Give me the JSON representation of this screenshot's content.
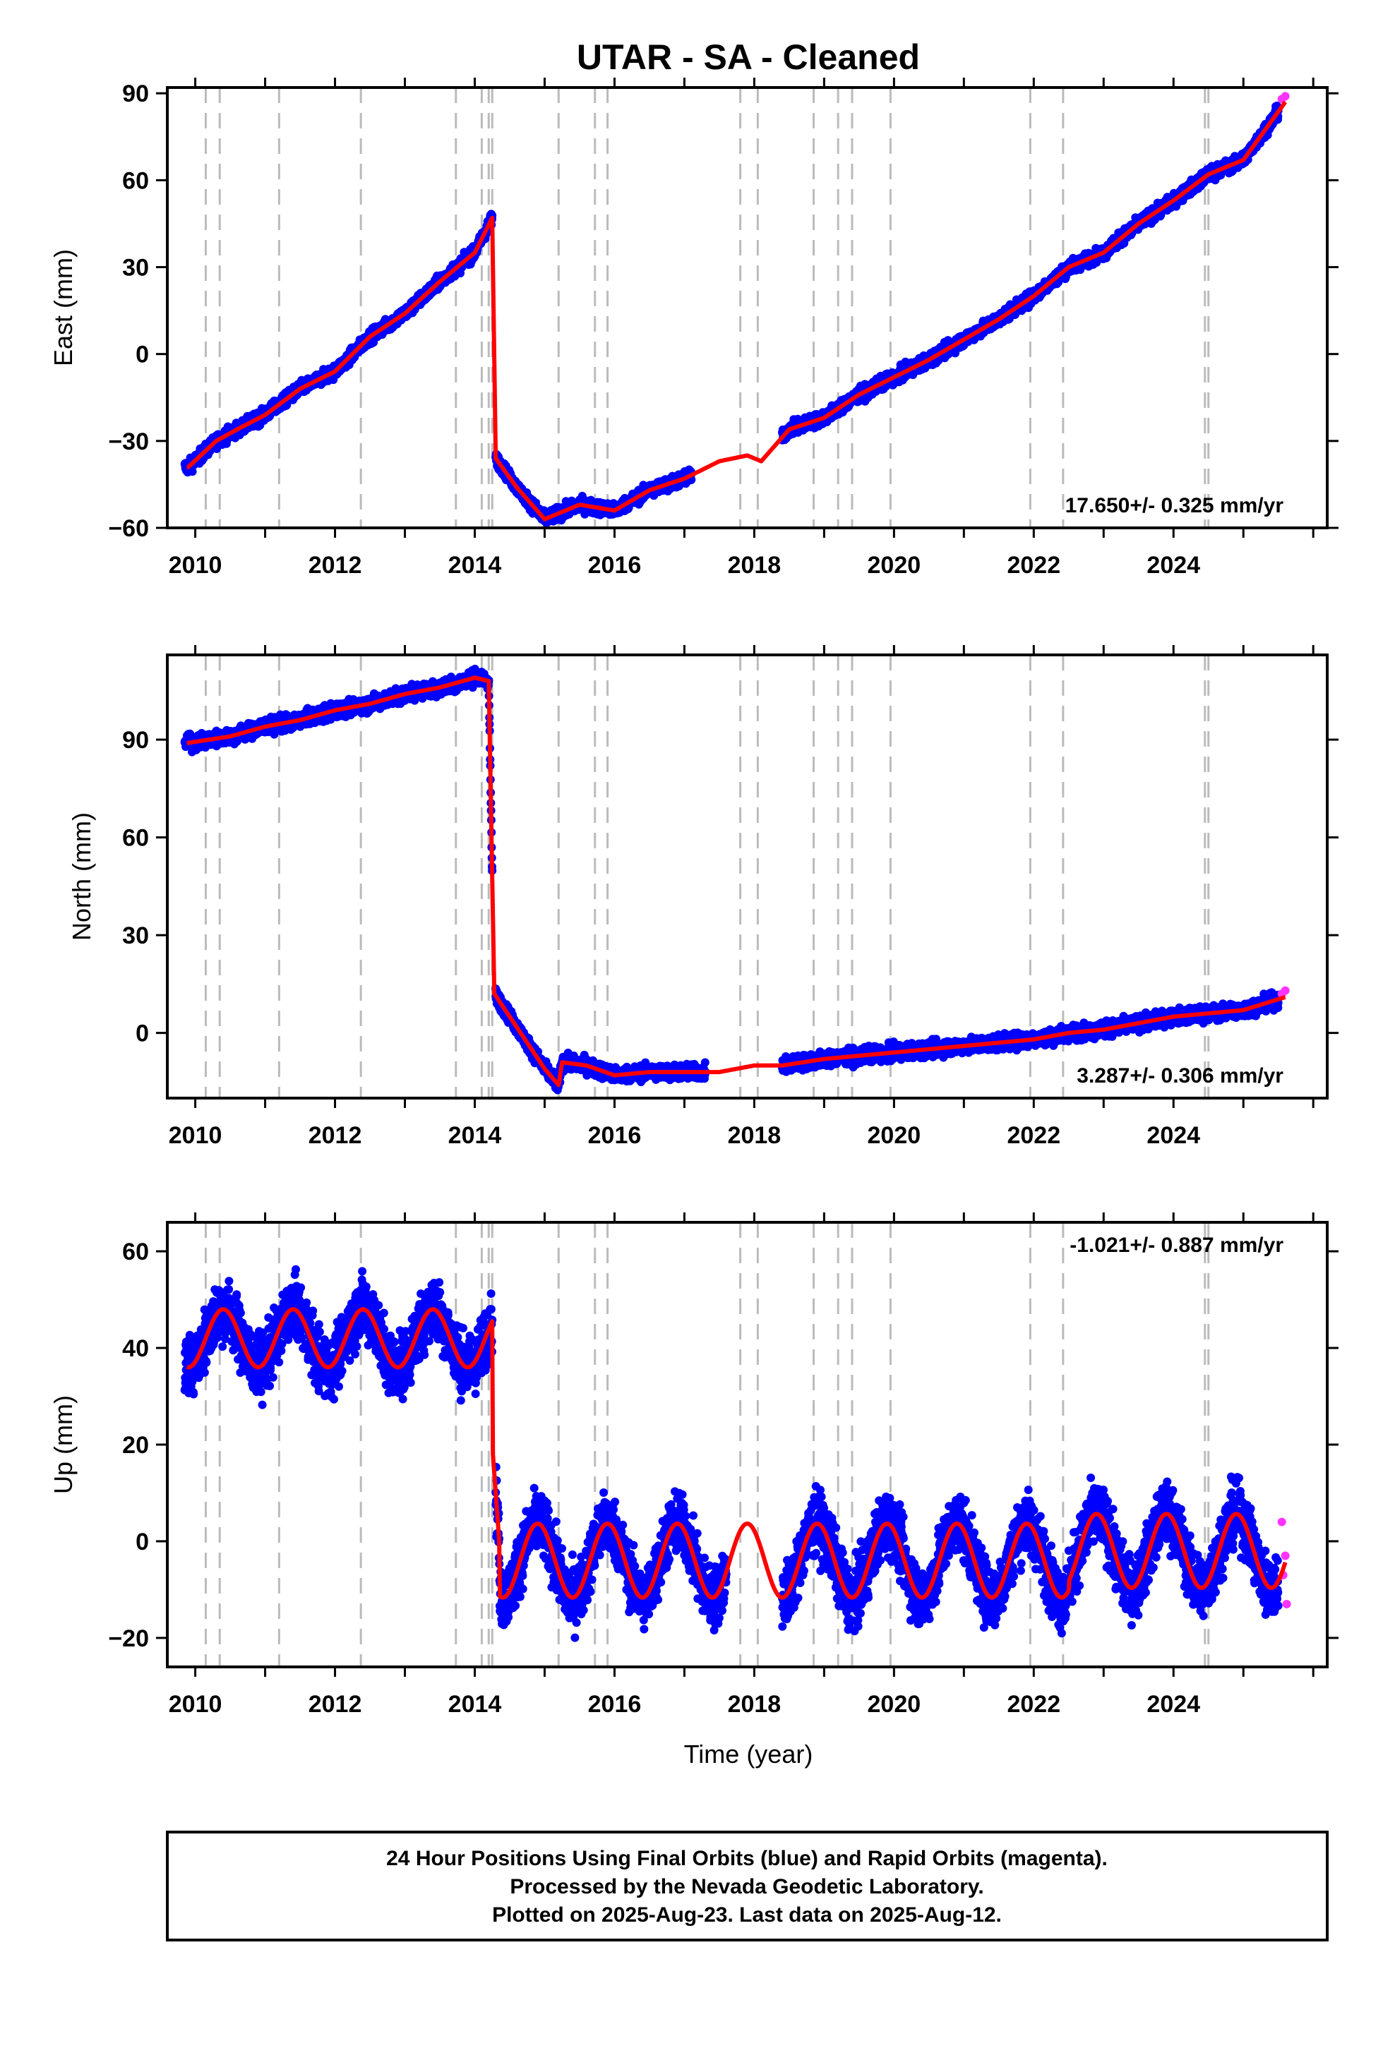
{
  "title": "UTAR  - SA - Cleaned",
  "xlabel": "Time (year)",
  "footer": [
    "24 Hour Positions Using Final Orbits (blue) and Rapid Orbits (magenta).",
    "Processed by the Nevada Geodetic Laboratory.",
    "Plotted on 2025-Aug-23. Last data on 2025-Aug-12."
  ],
  "colors": {
    "final": "#0000ff",
    "rapid": "#ff33ff",
    "model": "#ff0000",
    "event": "#bbbbbb",
    "frame": "#000000"
  },
  "chart_data": [
    {
      "type": "scatter",
      "component": "East",
      "ylabel": "East (mm)",
      "rate": "17.650+/- 0.325 mm/yr",
      "xlim": [
        2009.6,
        2026.2
      ],
      "ylim": [
        -60,
        92
      ],
      "yticks": [
        -60,
        -30,
        0,
        30,
        60,
        90
      ],
      "xticks": [
        2010,
        2012,
        2014,
        2016,
        2018,
        2020,
        2022,
        2024
      ],
      "grid": false,
      "model_curve": {
        "x": [
          2009.9,
          2010.3,
          2010.6,
          2011.0,
          2011.5,
          2012.0,
          2012.5,
          2013.0,
          2013.5,
          2014.0,
          2014.25,
          2014.3,
          2014.6,
          2015.0,
          2015.5,
          2016.0,
          2016.5,
          2017.0,
          2017.5,
          2017.9,
          2018.1,
          2018.5,
          2019.0,
          2019.5,
          2020.0,
          2020.5,
          2021.0,
          2021.5,
          2022.0,
          2022.5,
          2023.0,
          2023.5,
          2024.0,
          2024.5,
          2025.0,
          2025.6
        ],
        "y": [
          -39,
          -30,
          -26,
          -21,
          -12,
          -6,
          6,
          14,
          25,
          35,
          47,
          -36,
          -46,
          -57,
          -52,
          -54,
          -47,
          -43,
          -37,
          -35,
          -37,
          -26,
          -22,
          -14,
          -8,
          -2,
          5,
          12,
          20,
          30,
          35,
          45,
          53,
          62,
          67,
          87
        ]
      },
      "series": [
        {
          "name": "Final Orbits (blue)",
          "segments": [
            [
              2009.85,
              2014.25
            ],
            [
              2014.3,
              2017.1
            ],
            [
              2018.4,
              2025.5
            ]
          ]
        },
        {
          "name": "Rapid Orbits (magenta)",
          "x": [
            2025.55,
            2025.6
          ],
          "y": [
            88,
            89
          ]
        }
      ],
      "events": [
        2010.15,
        2010.35,
        2011.2,
        2012.37,
        2013.73,
        2014.1,
        2014.2,
        2014.25,
        2015.2,
        2015.72,
        2015.9,
        2017.8,
        2018.05,
        2018.85,
        2019.2,
        2019.4,
        2019.95,
        2021.95,
        2022.42,
        2024.45,
        2024.5
      ]
    },
    {
      "type": "scatter",
      "component": "North",
      "ylabel": "North (mm)",
      "rate": "3.287+/- 0.306 mm/yr",
      "xlim": [
        2009.6,
        2026.2
      ],
      "ylim": [
        -20,
        116
      ],
      "yticks": [
        0,
        30,
        60,
        90
      ],
      "xticks": [
        2010,
        2012,
        2014,
        2016,
        2018,
        2020,
        2022,
        2024
      ],
      "grid": false,
      "model_curve": {
        "x": [
          2009.9,
          2010.5,
          2011.0,
          2011.5,
          2012.0,
          2012.5,
          2013.0,
          2013.5,
          2014.0,
          2014.2,
          2014.28,
          2014.5,
          2015.0,
          2015.2,
          2015.25,
          2015.6,
          2016.0,
          2016.5,
          2017.0,
          2017.5,
          2018.0,
          2018.4,
          2019.0,
          2019.5,
          2020.0,
          2020.5,
          2021.0,
          2021.5,
          2022.0,
          2022.5,
          2023.0,
          2023.5,
          2024.0,
          2024.5,
          2025.0,
          2025.6
        ],
        "y": [
          89,
          91,
          94,
          96,
          99,
          101,
          104,
          106,
          109,
          108,
          12,
          5,
          -11,
          -16,
          -9,
          -10,
          -13,
          -12,
          -12,
          -12,
          -10,
          -10,
          -8,
          -7,
          -6,
          -5,
          -4,
          -3,
          -2,
          0,
          1,
          3,
          5,
          6,
          7,
          11
        ]
      },
      "series": [
        {
          "name": "Final Orbits (blue)",
          "segments": [
            [
              2009.85,
              2014.25
            ],
            [
              2014.3,
              2017.3
            ],
            [
              2018.4,
              2025.5
            ]
          ]
        },
        {
          "name": "Rapid Orbits (magenta)",
          "x": [
            2025.55,
            2025.6
          ],
          "y": [
            12,
            13
          ]
        }
      ],
      "events": [
        2010.15,
        2010.35,
        2011.2,
        2012.37,
        2013.73,
        2014.1,
        2014.2,
        2014.25,
        2015.2,
        2015.72,
        2015.9,
        2017.8,
        2018.05,
        2018.85,
        2019.2,
        2019.4,
        2019.95,
        2021.95,
        2022.42,
        2024.45,
        2024.5
      ]
    },
    {
      "type": "scatter",
      "component": "Up",
      "ylabel": "Up (mm)",
      "rate": "-1.021+/- 0.887 mm/yr",
      "xlim": [
        2009.6,
        2026.2
      ],
      "ylim": [
        -26,
        66
      ],
      "yticks": [
        -20,
        0,
        20,
        40,
        60
      ],
      "xticks": [
        2010,
        2012,
        2014,
        2016,
        2018,
        2020,
        2022,
        2024
      ],
      "grid": false,
      "model_curve": {
        "description_free": true,
        "seasonal_amplitude": 6,
        "pre_event_mean": 42,
        "post_event_mean": -4
      },
      "series": [
        {
          "name": "Final Orbits (blue)",
          "segments": [
            [
              2009.85,
              2014.25
            ],
            [
              2014.3,
              2017.6
            ],
            [
              2018.4,
              2025.5
            ]
          ]
        },
        {
          "name": "Rapid Orbits (magenta)",
          "x": [
            2025.55,
            2025.57,
            2025.6,
            2025.62
          ],
          "y": [
            4,
            -7,
            -3,
            -13
          ]
        }
      ],
      "events": [
        2010.15,
        2010.35,
        2011.2,
        2012.37,
        2013.73,
        2014.1,
        2014.2,
        2014.25,
        2015.2,
        2015.72,
        2015.9,
        2017.8,
        2018.05,
        2018.85,
        2019.2,
        2019.4,
        2019.95,
        2021.95,
        2022.42,
        2024.45,
        2024.5
      ]
    }
  ]
}
